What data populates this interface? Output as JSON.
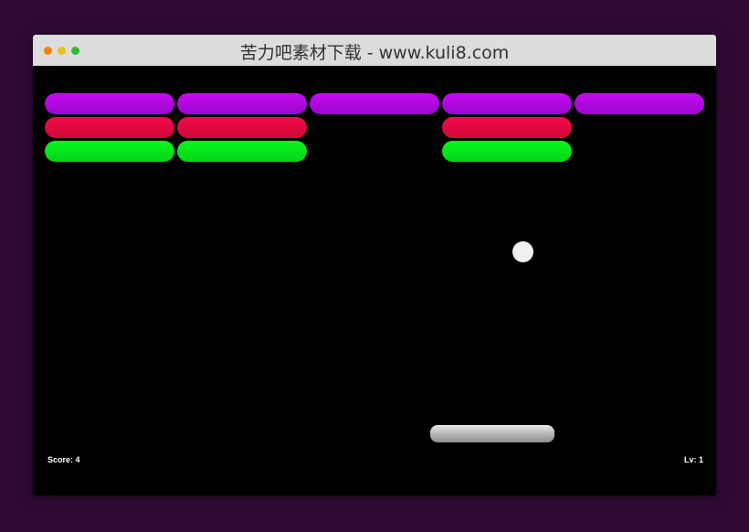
{
  "window": {
    "title": "苦力吧素材下载 - www.kuli8.com",
    "traffic_lights": [
      "#f5820d",
      "#e9c21c",
      "#33b93c"
    ]
  },
  "game": {
    "score_label": "Score: 4",
    "level_label": "Lv: 1",
    "row_colors": [
      [
        "#c60af5",
        "#9a06c9"
      ],
      [
        "#f20a4a",
        "#cf0838"
      ],
      [
        "#08f51c",
        "#05d418"
      ]
    ],
    "bricks": [
      [
        1,
        1,
        1,
        1,
        1
      ],
      [
        1,
        1,
        0,
        1,
        0
      ],
      [
        1,
        1,
        0,
        1,
        0
      ]
    ],
    "ball_color": "#f0f0f0"
  }
}
